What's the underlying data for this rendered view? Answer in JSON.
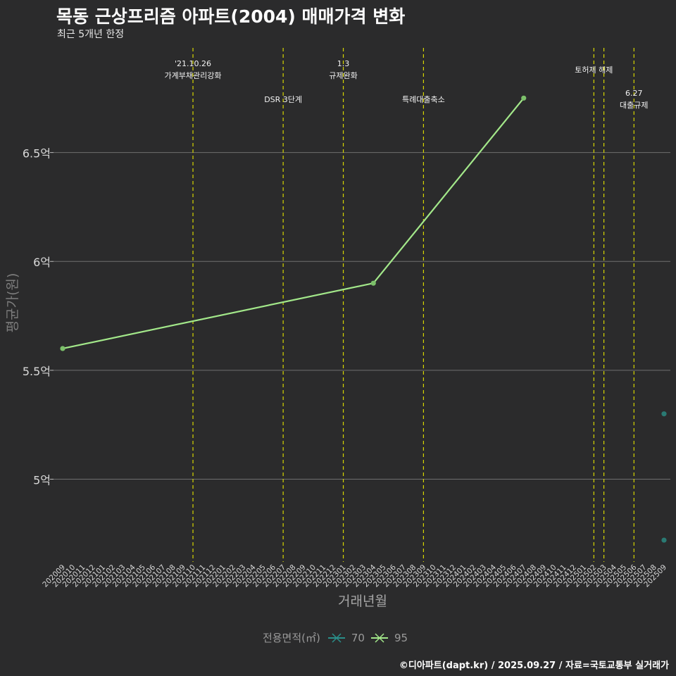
{
  "title": "목동 근상프리즘 아파트(2004) 매매가격 변화",
  "subtitle": "최근 5개년 한정",
  "caption": "©디아파트(dapt.kr) / 2025.09.27 / 자료=국토교통부 실거래가",
  "legend": {
    "title": "전용면적(㎡)",
    "items": [
      {
        "label": "70",
        "color": "#2a8f8a"
      },
      {
        "label": "95",
        "color": "#a3e88a"
      }
    ]
  },
  "chart_data": {
    "type": "line",
    "title": "목동 근상프리즘 아파트(2004) 매매가격 변화",
    "xlabel": "거래년월",
    "ylabel": "평균가(원)",
    "categories": [
      "202009",
      "202010",
      "202011",
      "202012",
      "202101",
      "202102",
      "202103",
      "202104",
      "202105",
      "202106",
      "202107",
      "202108",
      "202109",
      "202110",
      "202111",
      "202112",
      "202201",
      "202202",
      "202203",
      "202204",
      "202205",
      "202206",
      "202207",
      "202208",
      "202209",
      "202210",
      "202211",
      "202212",
      "202301",
      "202302",
      "202303",
      "202304",
      "202305",
      "202306",
      "202307",
      "202308",
      "202309",
      "202310",
      "202311",
      "202312",
      "202401",
      "202402",
      "202403",
      "202404",
      "202405",
      "202406",
      "202407",
      "202408",
      "202409",
      "202410",
      "202411",
      "202412",
      "202501",
      "202502",
      "202503",
      "202504",
      "202505",
      "202506",
      "202507",
      "202508",
      "202509"
    ],
    "ylim": [
      4.62,
      7.0
    ],
    "yticks": [
      {
        "value": 5.0,
        "label": "5억"
      },
      {
        "value": 5.5,
        "label": "5.5억"
      },
      {
        "value": 6.0,
        "label": "6억"
      },
      {
        "value": 6.5,
        "label": "6.5억"
      }
    ],
    "series": [
      {
        "name": "95",
        "color": "#a3e88a",
        "line": true,
        "points": [
          {
            "x": "202009",
            "y": 5.6
          },
          {
            "x": "202304",
            "y": 5.9
          },
          {
            "x": "202407",
            "y": 6.75
          }
        ]
      },
      {
        "name": "70",
        "color": "#2a7a73",
        "line": false,
        "points": [
          {
            "x": "202509",
            "y": 5.3
          },
          {
            "x": "202509",
            "y": 4.72
          }
        ]
      }
    ],
    "events": [
      {
        "x": "202110",
        "lines": [
          "'21.10.26",
          "가계부채관리강화"
        ],
        "row": 1
      },
      {
        "x": "202207",
        "lines": [
          "DSR 3단계"
        ],
        "row": 2
      },
      {
        "x": "202301",
        "lines": [
          "1.3",
          "규제완화"
        ],
        "row": 1
      },
      {
        "x": "202309",
        "lines": [
          "특례대출축소"
        ],
        "row": 2
      },
      {
        "x": "202502",
        "lines": [
          "토허제 해제"
        ],
        "row": 0
      },
      {
        "x": "202503",
        "lines": [],
        "row": 0
      },
      {
        "x": "202506",
        "lines": [
          "6.27",
          "대출규제"
        ],
        "row": 3
      }
    ],
    "grid": true,
    "legend_position": "bottom"
  }
}
